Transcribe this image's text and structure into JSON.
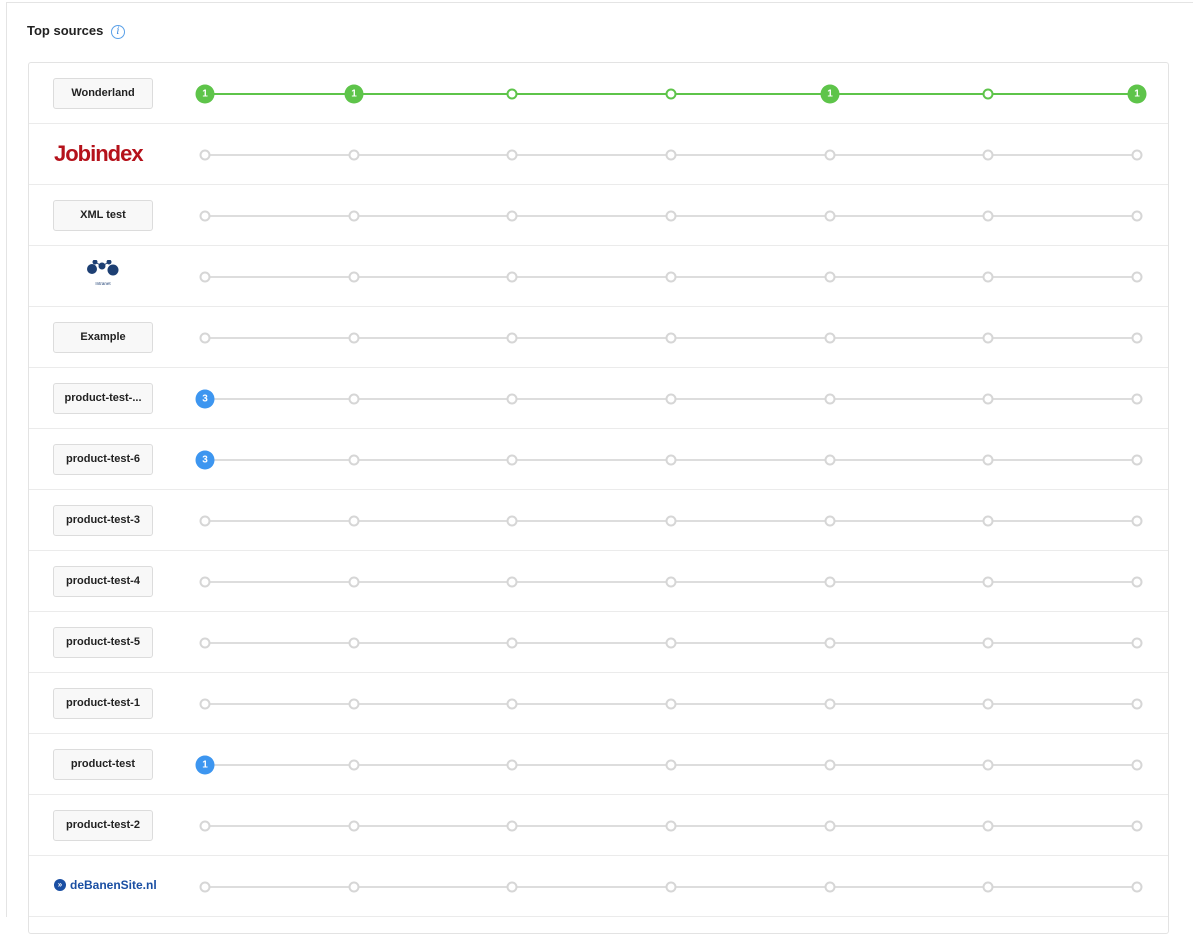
{
  "title": "Top sources",
  "colors": {
    "green": "#5ec44a",
    "blue": "#3d96f0",
    "empty": "#d6d6d6"
  },
  "rows": [
    {
      "label": "Wonderland",
      "type": "button",
      "active": "green",
      "nodes": [
        1,
        1,
        null,
        null,
        1,
        null,
        1
      ]
    },
    {
      "label": "Jobindex",
      "type": "logo-jobindex",
      "nodes": [
        null,
        null,
        null,
        null,
        null,
        null,
        null
      ]
    },
    {
      "label": "XML test",
      "type": "button",
      "nodes": [
        null,
        null,
        null,
        null,
        null,
        null,
        null
      ]
    },
    {
      "label": "Intranet",
      "type": "logo-intranet",
      "nodes": [
        null,
        null,
        null,
        null,
        null,
        null,
        null
      ]
    },
    {
      "label": "Example",
      "type": "button",
      "nodes": [
        null,
        null,
        null,
        null,
        null,
        null,
        null
      ]
    },
    {
      "label": "product-test-...",
      "type": "button",
      "nodes": [
        3,
        null,
        null,
        null,
        null,
        null,
        null
      ]
    },
    {
      "label": "product-test-6",
      "type": "button",
      "nodes": [
        3,
        null,
        null,
        null,
        null,
        null,
        null
      ]
    },
    {
      "label": "product-test-3",
      "type": "button",
      "nodes": [
        null,
        null,
        null,
        null,
        null,
        null,
        null
      ]
    },
    {
      "label": "product-test-4",
      "type": "button",
      "nodes": [
        null,
        null,
        null,
        null,
        null,
        null,
        null
      ]
    },
    {
      "label": "product-test-5",
      "type": "button",
      "nodes": [
        null,
        null,
        null,
        null,
        null,
        null,
        null
      ]
    },
    {
      "label": "product-test-1",
      "type": "button",
      "nodes": [
        null,
        null,
        null,
        null,
        null,
        null,
        null
      ]
    },
    {
      "label": "product-test",
      "type": "button",
      "nodes": [
        1,
        null,
        null,
        null,
        null,
        null,
        null
      ]
    },
    {
      "label": "product-test-2",
      "type": "button",
      "nodes": [
        null,
        null,
        null,
        null,
        null,
        null,
        null
      ]
    },
    {
      "label": "deBanenSite.nl",
      "type": "logo-debanensite",
      "nodes": [
        null,
        null,
        null,
        null,
        null,
        null,
        null
      ]
    }
  ]
}
